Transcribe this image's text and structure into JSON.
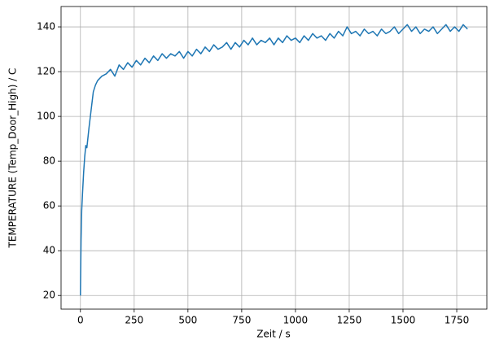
{
  "chart_data": {
    "type": "line",
    "x_label": "Zeit / s",
    "y_label": "TEMPERATURE (Temp_Door_High) / C",
    "x": [
      0,
      3,
      6,
      10,
      15,
      20,
      25,
      30,
      40,
      50,
      60,
      70,
      80,
      90,
      100,
      120,
      140,
      160,
      180,
      200,
      220,
      240,
      260,
      280,
      300,
      320,
      340,
      360,
      380,
      400,
      420,
      440,
      460,
      480,
      500,
      520,
      540,
      560,
      580,
      600,
      620,
      640,
      660,
      680,
      700,
      720,
      740,
      760,
      780,
      800,
      820,
      840,
      860,
      880,
      900,
      920,
      940,
      960,
      980,
      1000,
      1020,
      1040,
      1060,
      1080,
      1100,
      1120,
      1140,
      1160,
      1180,
      1200,
      1220,
      1240,
      1260,
      1280,
      1300,
      1320,
      1340,
      1360,
      1380,
      1400,
      1420,
      1440,
      1460,
      1480,
      1500,
      1520,
      1540,
      1560,
      1580,
      1600,
      1620,
      1640,
      1660,
      1680,
      1700,
      1720,
      1740,
      1760,
      1780,
      1800
    ],
    "series": [
      {
        "color": "#1f77b4",
        "values": [
          20,
          45,
          58,
          66,
          75,
          82,
          87,
          86,
          95,
          103,
          111,
          114,
          116,
          117,
          118,
          119,
          121,
          118,
          123,
          121,
          124,
          122,
          125,
          123,
          126,
          124,
          127,
          125,
          128,
          126,
          128,
          127,
          129,
          126,
          129,
          127,
          130,
          128,
          131,
          129,
          132,
          130,
          131,
          133,
          130,
          133,
          131,
          134,
          132,
          135,
          132,
          134,
          133,
          135,
          132,
          135,
          133,
          136,
          134,
          135,
          133,
          136,
          134,
          137,
          135,
          136,
          134,
          137,
          135,
          138,
          136,
          140,
          137,
          138,
          136,
          139,
          137,
          138,
          136,
          139,
          137,
          138,
          140,
          137,
          139,
          141,
          138,
          140,
          137,
          139,
          138,
          140,
          137,
          139,
          141,
          138,
          140,
          138,
          141,
          139
        ]
      }
    ],
    "xlim": [
      -90,
      1890
    ],
    "ylim": [
      13.9,
      149.1
    ],
    "xticks": [
      0,
      250,
      500,
      750,
      1000,
      1250,
      1500,
      1750
    ],
    "yticks": [
      20,
      40,
      60,
      80,
      100,
      120,
      140
    ],
    "grid": true
  }
}
